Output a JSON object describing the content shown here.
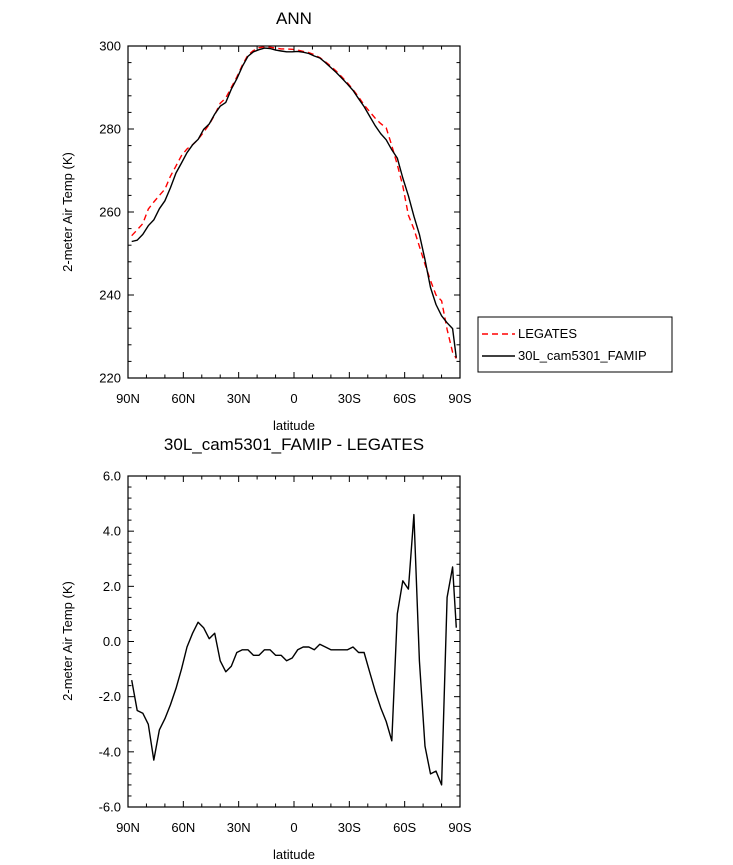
{
  "chart_data": [
    {
      "type": "line",
      "title": "ANN",
      "xlabel": "latitude",
      "ylabel": "2-meter Air Temp (K)",
      "xlim": [
        90,
        -90
      ],
      "ylim": [
        220,
        300
      ],
      "x_ticks": [
        90,
        60,
        30,
        0,
        -30,
        -60,
        -90
      ],
      "x_tick_labels": [
        "90N",
        "60N",
        "30N",
        "0",
        "30S",
        "60S",
        "90S"
      ],
      "y_ticks": [
        220,
        240,
        260,
        280,
        300
      ],
      "y_tick_labels": [
        "220",
        "240",
        "260",
        "280",
        "300"
      ],
      "legend_position": "right",
      "series": [
        {
          "name": "LEGATES",
          "color": "#ff0000",
          "dash": "dashed",
          "x": [
            88,
            85,
            82,
            79,
            76,
            73,
            70,
            67,
            64,
            61,
            58,
            55,
            52,
            49,
            46,
            43,
            40,
            37,
            34,
            31,
            28,
            25,
            22,
            19,
            16,
            13,
            10,
            7,
            4,
            1,
            -2,
            -5,
            -8,
            -11,
            -14,
            -17,
            -20,
            -23,
            -26,
            -29,
            -32,
            -35,
            -38,
            -41,
            -44,
            -47,
            -50,
            -53,
            -56,
            -59,
            -62,
            -65,
            -68,
            -71,
            -74,
            -77,
            -80,
            -83,
            -86,
            -88
          ],
          "values": [
            254.3,
            255.7,
            257.2,
            260.7,
            262.4,
            264.0,
            265.5,
            268.6,
            271.1,
            273.6,
            275.2,
            276.2,
            277.5,
            279.2,
            281.1,
            283.4,
            286.2,
            287.5,
            290.0,
            292.5,
            295.4,
            297.8,
            298.9,
            299.6,
            299.8,
            299.7,
            299.5,
            299.3,
            299.3,
            299.2,
            299.0,
            298.7,
            298.4,
            297.9,
            297.2,
            296.2,
            295.1,
            293.9,
            292.5,
            291.1,
            289.5,
            287.7,
            285.8,
            284.2,
            282.6,
            281.3,
            280.3,
            276.0,
            271.4,
            266.3,
            259.2,
            255.9,
            251.7,
            247.4,
            243.5,
            240.0,
            238.6,
            231.7,
            226.2,
            224.7
          ]
        },
        {
          "name": "30L_cam5301_FAMIP",
          "color": "#000000",
          "dash": "solid",
          "x": [
            88,
            85,
            82,
            79,
            76,
            73,
            70,
            67,
            64,
            61,
            58,
            55,
            52,
            49,
            46,
            43,
            40,
            37,
            34,
            31,
            28,
            25,
            22,
            19,
            16,
            13,
            10,
            7,
            4,
            1,
            -2,
            -5,
            -8,
            -11,
            -14,
            -17,
            -20,
            -23,
            -26,
            -29,
            -32,
            -35,
            -38,
            -41,
            -44,
            -47,
            -50,
            -53,
            -56,
            -59,
            -62,
            -65,
            -68,
            -71,
            -74,
            -77,
            -80,
            -83,
            -86,
            -88
          ],
          "values": [
            252.9,
            253.2,
            254.6,
            256.7,
            258.1,
            260.8,
            262.7,
            265.8,
            269.4,
            271.8,
            274.3,
            276.2,
            277.5,
            279.9,
            281.2,
            283.6,
            285.5,
            286.4,
            289.6,
            292.1,
            295.1,
            297.5,
            298.6,
            299.1,
            299.5,
            299.4,
            299.0,
            298.8,
            298.6,
            298.6,
            298.7,
            298.5,
            298.2,
            297.6,
            297.1,
            296.0,
            294.8,
            293.6,
            292.2,
            290.8,
            289.3,
            287.3,
            285.4,
            283.1,
            280.8,
            278.9,
            277.4,
            275.0,
            273.0,
            268.2,
            263.9,
            259.0,
            254.6,
            248.5,
            241.8,
            237.7,
            235.0,
            233.3,
            231.9,
            224.9
          ]
        }
      ]
    },
    {
      "type": "line",
      "title": "30L_cam5301_FAMIP - LEGATES",
      "xlabel": "latitude",
      "ylabel": "2-meter Air Temp (K)",
      "xlim": [
        90,
        -90
      ],
      "ylim": [
        -6.0,
        6.0
      ],
      "x_ticks": [
        90,
        60,
        30,
        0,
        -30,
        -60,
        -90
      ],
      "x_tick_labels": [
        "90N",
        "60N",
        "30N",
        "0",
        "30S",
        "60S",
        "90S"
      ],
      "y_ticks": [
        -6,
        -4,
        -2,
        0,
        2,
        4,
        6
      ],
      "y_tick_labels": [
        "-6.0",
        "-4.0",
        "-2.0",
        "0.0",
        "2.0",
        "4.0",
        "6.0"
      ],
      "series": [
        {
          "color": "#000000",
          "dash": "solid",
          "x": [
            88,
            85,
            82,
            79,
            76,
            73,
            70,
            67,
            64,
            61,
            58,
            55,
            52,
            49,
            46,
            43,
            40,
            37,
            34,
            31,
            28,
            25,
            22,
            19,
            16,
            13,
            10,
            7,
            4,
            1,
            -2,
            -5,
            -8,
            -11,
            -14,
            -17,
            -20,
            -23,
            -26,
            -29,
            -32,
            -35,
            -38,
            -41,
            -44,
            -47,
            -50,
            -53,
            -56,
            -59,
            -62,
            -65,
            -68,
            -71,
            -74,
            -77,
            -80,
            -83,
            -86,
            -88
          ],
          "values": [
            -1.4,
            -2.5,
            -2.6,
            -3.0,
            -4.3,
            -3.2,
            -2.8,
            -2.3,
            -1.7,
            -1.0,
            -0.2,
            0.3,
            0.7,
            0.5,
            0.1,
            0.3,
            -0.7,
            -1.1,
            -0.9,
            -0.4,
            -0.3,
            -0.3,
            -0.5,
            -0.5,
            -0.3,
            -0.3,
            -0.5,
            -0.5,
            -0.7,
            -0.6,
            -0.3,
            -0.2,
            -0.2,
            -0.3,
            -0.1,
            -0.2,
            -0.3,
            -0.3,
            -0.3,
            -0.3,
            -0.2,
            -0.4,
            -0.4,
            -1.1,
            -1.8,
            -2.4,
            -2.9,
            -3.6,
            1.0,
            2.2,
            1.9,
            4.6,
            -0.7,
            -3.8,
            -4.8,
            -4.7,
            -5.2,
            1.6,
            2.7,
            0.5
          ]
        }
      ]
    }
  ]
}
